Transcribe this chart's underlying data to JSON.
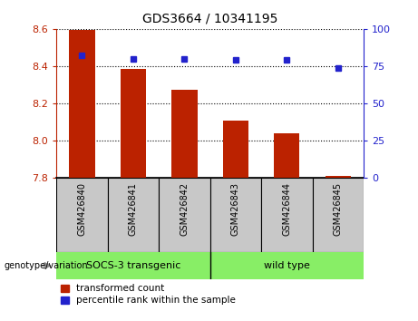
{
  "title": "GDS3664 / 10341195",
  "samples": [
    "GSM426840",
    "GSM426841",
    "GSM426842",
    "GSM426843",
    "GSM426844",
    "GSM426845"
  ],
  "bar_values": [
    8.595,
    8.385,
    8.275,
    8.11,
    8.04,
    7.812
  ],
  "dot_values": [
    82,
    80,
    80,
    79,
    79,
    74
  ],
  "bar_color": "#bb2200",
  "dot_color": "#2222cc",
  "ymin": 7.8,
  "ymax": 8.6,
  "y2min": 0,
  "y2max": 100,
  "yticks": [
    7.8,
    8.0,
    8.2,
    8.4,
    8.6
  ],
  "y2ticks": [
    0,
    25,
    50,
    75,
    100
  ],
  "group1_label": "SOCS-3 transgenic",
  "group2_label": "wild type",
  "group_color": "#88ee66",
  "group_boundary": 2.5,
  "legend_red_label": "transformed count",
  "legend_blue_label": "percentile rank within the sample",
  "genotype_label": "genotype/variation",
  "background_color": "#ffffff",
  "tick_area_color": "#c8c8c8",
  "bar_width": 0.5
}
